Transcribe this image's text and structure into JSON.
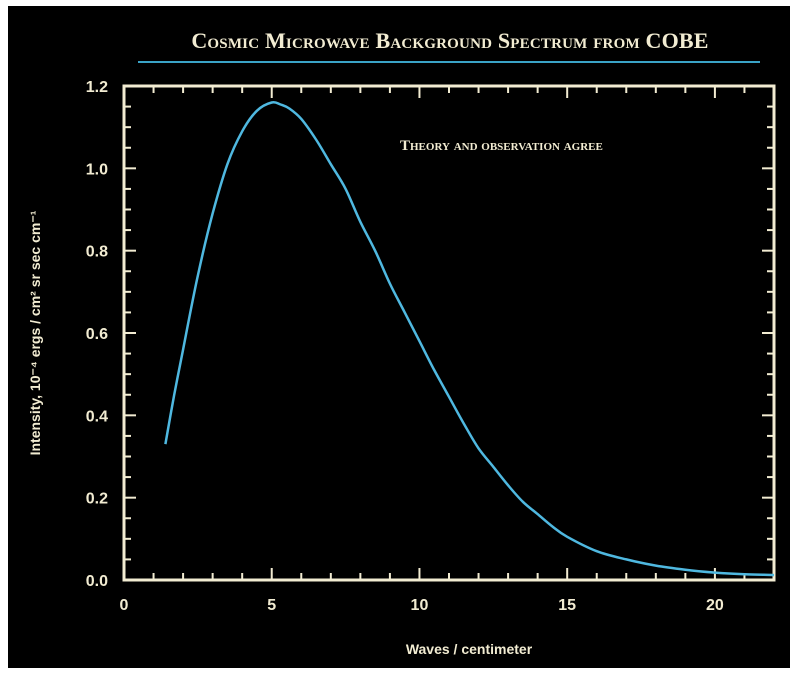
{
  "chart_data": {
    "type": "line",
    "title": "Cosmic Microwave Background Spectrum from COBE",
    "xlabel": "Waves / centimeter",
    "ylabel": "Intensity, 10⁻⁴ ergs / cm² sr sec cm⁻¹",
    "annotation": "Theory and observation agree",
    "xlim": [
      0,
      22
    ],
    "ylim": [
      0,
      1.2
    ],
    "x_ticks": [
      0,
      5,
      10,
      15,
      20
    ],
    "x_tick_labels": [
      "0",
      "5",
      "10",
      "15",
      "20"
    ],
    "y_ticks": [
      0,
      0.2,
      0.4,
      0.6,
      0.8,
      1.0,
      1.2
    ],
    "y_tick_labels": [
      "0.0",
      "0.2",
      "0.4",
      "0.6",
      "0.8",
      "1.0",
      "1.2"
    ],
    "grid": false,
    "series": [
      {
        "x": [
          1.4,
          1.7,
          2.0,
          2.5,
          3.0,
          3.5,
          4.0,
          4.5,
          5.0,
          5.3,
          5.6,
          6.0,
          6.5,
          7.0,
          7.5,
          8.0,
          8.5,
          9.0,
          9.5,
          10.0,
          10.5,
          11.0,
          11.5,
          12.0,
          12.5,
          13.0,
          13.5,
          14.0,
          14.5,
          15.0,
          16.0,
          17.0,
          18.0,
          19.0,
          20.0,
          21.0,
          22.0
        ],
        "y": [
          0.33,
          0.45,
          0.56,
          0.74,
          0.89,
          1.01,
          1.09,
          1.14,
          1.16,
          1.155,
          1.145,
          1.12,
          1.07,
          1.01,
          0.95,
          0.87,
          0.8,
          0.72,
          0.65,
          0.58,
          0.51,
          0.445,
          0.38,
          0.32,
          0.275,
          0.23,
          0.19,
          0.16,
          0.13,
          0.105,
          0.07,
          0.05,
          0.035,
          0.025,
          0.018,
          0.014,
          0.012
        ]
      }
    ],
    "colors": {
      "background": "#000000",
      "axes": "#f2ecd2",
      "line": "#4fb8e0",
      "underline": "#3aa3c6"
    }
  }
}
